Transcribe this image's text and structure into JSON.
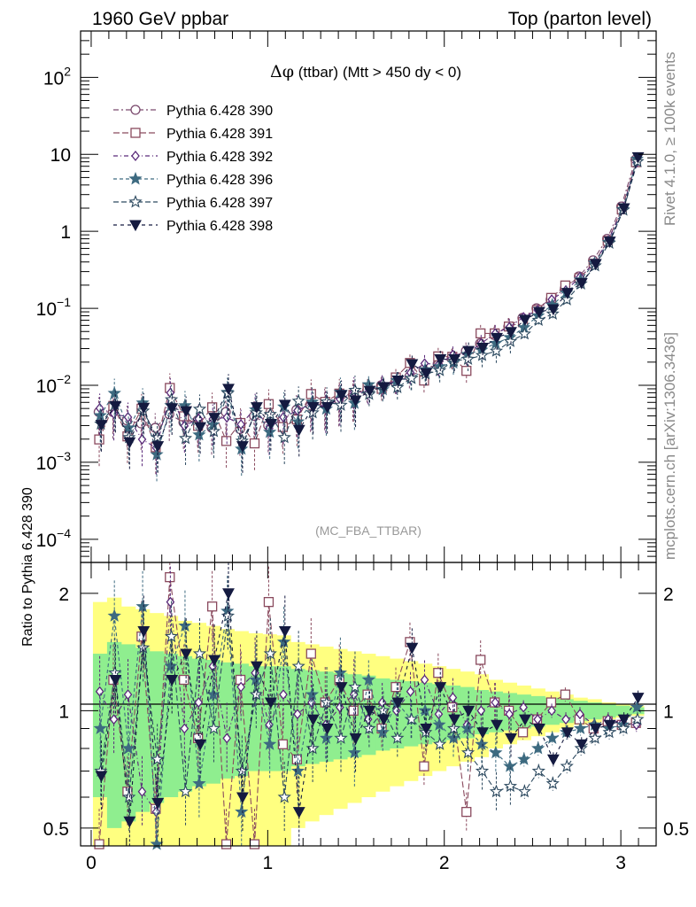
{
  "header": {
    "left": "1960 GeV ppbar",
    "right": "Top (parton level)"
  },
  "side_labels": {
    "rivet": "Rivet 4.1.0, ≥ 100k events",
    "mcplots": "mcplots.cern.ch [arXiv:1306.3436]"
  },
  "chart_data": [
    {
      "type": "line",
      "title": "Δφ (ttbar) (Mtt > 450 dy < 0)",
      "title_prefix": "Δφ",
      "title_rest": " (ttbar) (Mtt > 450 dy < 0)",
      "watermark": "(MC_FBA_TTBAR)",
      "yscale": "log",
      "ylim": [
        5e-05,
        400
      ],
      "xlim": [
        -0.06,
        3.2
      ],
      "y_ticks": [
        {
          "value": 0.0001,
          "base": "10",
          "exp": "−4"
        },
        {
          "value": 0.001,
          "base": "10",
          "exp": "−3"
        },
        {
          "value": 0.01,
          "base": "10",
          "exp": "−2"
        },
        {
          "value": 0.1,
          "base": "10",
          "exp": "−1"
        },
        {
          "value": 1,
          "base": "1",
          "exp": ""
        },
        {
          "value": 10,
          "base": "10",
          "exp": ""
        },
        {
          "value": 100,
          "base": "10",
          "exp": "2"
        }
      ],
      "legend_position": "top-left",
      "series": [
        {
          "name": "Pythia 6.428 390",
          "color": "#7b4a6e",
          "marker": "circle-open"
        },
        {
          "name": "Pythia 6.428 391",
          "color": "#8a4a5e",
          "marker": "square-open"
        },
        {
          "name": "Pythia 6.428 392",
          "color": "#5a2a7a",
          "marker": "diamond-open"
        },
        {
          "name": "Pythia 6.428 396",
          "color": "#3d6a80",
          "marker": "star-filled"
        },
        {
          "name": "Pythia 6.428 397",
          "color": "#2d4a60",
          "marker": "star-open"
        },
        {
          "name": "Pythia 6.428 398",
          "color": "#141a40",
          "marker": "triangle-down-filled"
        }
      ],
      "x": [
        0.05,
        0.13,
        0.21,
        0.29,
        0.37,
        0.45,
        0.53,
        0.61,
        0.69,
        0.77,
        0.85,
        0.93,
        1.01,
        1.09,
        1.17,
        1.25,
        1.33,
        1.41,
        1.49,
        1.57,
        1.65,
        1.73,
        1.81,
        1.89,
        1.97,
        2.05,
        2.13,
        2.21,
        2.29,
        2.37,
        2.45,
        2.53,
        2.61,
        2.69,
        2.77,
        2.85,
        2.93,
        3.01,
        3.09
      ],
      "reference_values": [
        0.0045,
        0.0045,
        0.0035,
        0.0032,
        0.0028,
        0.0042,
        0.0033,
        0.0035,
        0.0028,
        0.0045,
        0.0027,
        0.004,
        0.003,
        0.0035,
        0.0048,
        0.0055,
        0.0058,
        0.0065,
        0.0075,
        0.0085,
        0.01,
        0.011,
        0.013,
        0.016,
        0.019,
        0.023,
        0.028,
        0.035,
        0.045,
        0.058,
        0.075,
        0.1,
        0.13,
        0.18,
        0.26,
        0.42,
        0.8,
        2.1,
        8.5
      ],
      "ratio_values": [
        [
          1.0,
          1.0,
          1.0,
          1.0,
          1.0,
          1.0,
          1.0,
          1.0,
          1.0,
          1.0,
          1.0,
          1.0,
          1.0,
          1.0,
          1.0,
          1.0,
          1.0,
          1.0,
          1.0,
          1.0,
          1.0,
          1.0,
          1.0,
          1.0,
          1.0,
          1.0,
          1.0,
          1.0,
          1.0,
          1.0,
          1.0,
          1.0,
          1.0,
          1.0,
          1.0,
          1.0,
          1.0,
          1.0,
          1.0
        ],
        [
          0.44,
          1.2,
          0.62,
          1.55,
          0.56,
          2.2,
          1.2,
          0.85,
          1.85,
          0.42,
          1.2,
          0.44,
          1.9,
          0.82,
          0.75,
          1.4,
          1.05,
          1.2,
          1.0,
          1.1,
          0.9,
          1.15,
          1.5,
          0.72,
          1.25,
          1.02,
          0.55,
          1.35,
          1.05,
          1.0,
          0.88,
          0.95,
          1.05,
          1.1,
          0.95,
          0.9,
          0.94,
          0.92,
          0.93
        ],
        [
          1.12,
          0.95,
          1.1,
          0.62,
          0.55,
          1.9,
          0.9,
          1.05,
          1.3,
          0.85,
          1.15,
          1.25,
          0.92,
          1.1,
          0.98,
          1.05,
          0.92,
          1.02,
          1.1,
          0.95,
          1.05,
          1.0,
          1.12,
          1.2,
          0.98,
          1.08,
          0.92,
          1.0,
          1.05,
          0.98,
          1.02,
          0.95,
          1.0,
          0.95,
          0.98,
          0.92,
          0.95,
          0.93,
          0.92
        ],
        [
          0.9,
          1.75,
          0.8,
          1.85,
          0.45,
          1.3,
          1.65,
          0.65,
          1.1,
          1.8,
          0.55,
          1.2,
          0.82,
          1.5,
          0.7,
          1.1,
          0.85,
          1.25,
          0.78,
          1.2,
          0.88,
          1.05,
          0.95,
          1.0,
          0.92,
          0.85,
          0.9,
          0.82,
          0.78,
          0.72,
          0.75,
          0.8,
          0.85,
          0.88,
          0.9,
          0.92,
          0.9,
          0.92,
          1.02
        ],
        [
          0.7,
          1.25,
          0.6,
          1.45,
          0.75,
          1.55,
          0.62,
          1.4,
          0.9,
          1.75,
          0.7,
          1.1,
          1.4,
          0.6,
          1.3,
          0.8,
          1.05,
          0.85,
          1.15,
          0.9,
          1.0,
          0.85,
          0.95,
          0.88,
          0.82,
          0.9,
          0.78,
          0.7,
          0.62,
          0.64,
          0.62,
          0.7,
          0.65,
          0.72,
          0.8,
          0.85,
          0.88,
          0.9,
          0.95
        ],
        [
          0.68,
          1.2,
          0.52,
          1.6,
          0.58,
          1.2,
          1.4,
          0.82,
          1.35,
          2.0,
          0.6,
          1.3,
          1.05,
          1.6,
          0.55,
          0.95,
          0.9,
          1.15,
          0.85,
          1.0,
          0.95,
          1.05,
          1.45,
          0.9,
          1.15,
          0.95,
          1.0,
          0.88,
          0.92,
          0.85,
          0.95,
          0.9,
          0.75,
          0.88,
          0.82,
          0.9,
          0.92,
          0.95,
          1.08
        ]
      ]
    },
    {
      "type": "line",
      "ylabel": "Ratio to Pythia 6.428 390",
      "yscale": "log",
      "ylim": [
        0.45,
        2.4
      ],
      "y_ticks": [
        0.5,
        1,
        2
      ],
      "x_ticks": [
        0,
        1,
        2,
        3
      ],
      "xlim": [
        -0.06,
        3.2
      ],
      "band_inner_halfwidth": [
        0.4,
        0.5,
        0.48,
        0.45,
        0.42,
        0.4,
        0.38,
        0.36,
        0.35,
        0.33,
        0.32,
        0.3,
        0.3,
        0.3,
        0.28,
        0.27,
        0.26,
        0.25,
        0.24,
        0.23,
        0.21,
        0.2,
        0.19,
        0.18,
        0.17,
        0.16,
        0.15,
        0.13,
        0.12,
        0.11,
        0.1,
        0.09,
        0.08,
        0.07,
        0.06,
        0.05,
        0.04,
        0.03,
        0.02
      ],
      "band_outer_halfwidth": [
        0.9,
        0.95,
        0.85,
        0.82,
        0.78,
        0.75,
        0.7,
        0.68,
        0.65,
        0.62,
        0.6,
        0.58,
        0.57,
        0.56,
        0.5,
        0.48,
        0.46,
        0.44,
        0.42,
        0.4,
        0.38,
        0.36,
        0.34,
        0.32,
        0.3,
        0.28,
        0.26,
        0.24,
        0.2,
        0.18,
        0.16,
        0.14,
        0.12,
        0.1,
        0.08,
        0.07,
        0.05,
        0.04,
        0.03
      ],
      "band_colors": {
        "inner": "#8fee8f",
        "outer": "#ffff80"
      }
    }
  ]
}
